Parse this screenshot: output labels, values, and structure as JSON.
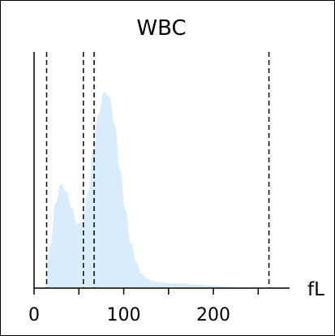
{
  "chart_data": {
    "type": "area",
    "title": "WBC",
    "xlabel": "",
    "unit_label": "fL",
    "xlim": [
      0,
      285
    ],
    "ylim": [
      0,
      1.0
    ],
    "x_ticks": [
      0,
      100,
      200
    ],
    "x_tick_labels": [
      "0",
      "100",
      "200"
    ],
    "grid": false,
    "legend": "none",
    "fill_color": "#d8ecfb",
    "line_color": "#000000",
    "thresholds_fl": [
      14,
      55,
      67,
      262
    ],
    "series": [
      {
        "x": [
          12,
          18,
          24,
          30,
          36,
          42,
          48,
          54,
          60,
          66,
          72,
          78,
          84,
          90,
          96,
          102,
          108,
          114,
          120,
          126,
          132,
          140,
          150,
          165,
          180,
          200,
          220,
          235
        ],
        "values": [
          0.0,
          0.18,
          0.36,
          0.44,
          0.41,
          0.34,
          0.27,
          0.28,
          0.4,
          0.58,
          0.74,
          0.83,
          0.81,
          0.69,
          0.5,
          0.33,
          0.19,
          0.11,
          0.06,
          0.04,
          0.03,
          0.025,
          0.02,
          0.02,
          0.015,
          0.01,
          0.005,
          0.0
        ]
      }
    ]
  }
}
